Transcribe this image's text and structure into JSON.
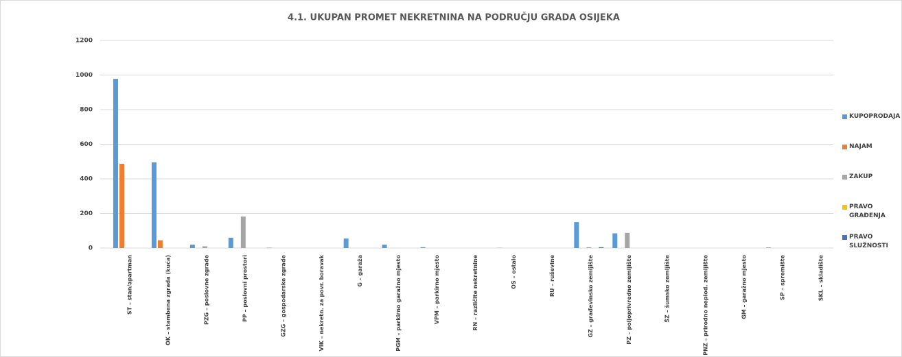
{
  "chart_data": {
    "type": "bar",
    "title": "4.1. UKUPAN PROMET NEKRETNINA NA PODRUČJU GRADA OSIJEKA",
    "categories": [
      "ST – stan/apartman",
      "OK – stambena zgrada (kuća)",
      "PZG – poslovne zgrade",
      "PP – poslovni prostori",
      "GZG – gospodarske zgrade",
      "VIK – nekretn. za povr. boravak",
      "G – garaža",
      "PGM – parkirno garažno mjesto",
      "VPM – parkirno mjesto",
      "RN – različite nekretnine",
      "OS – ostalo",
      "RU – ruševine",
      "GZ – građevinsko zemljište",
      "PZ – poljoprivredno zemljište",
      "ŠZ – šumsko zemljište",
      "PNZ – prirodno neplod. zemljište",
      "GM – garažno mjesto",
      "SP – spremište",
      "SKL – skladište"
    ],
    "series": [
      {
        "name": "KUPOPRODAJA",
        "color": "#5b9bd5",
        "values": [
          978,
          495,
          20,
          60,
          2,
          0,
          55,
          20,
          5,
          0,
          1,
          0,
          150,
          85,
          0,
          0,
          0,
          3,
          0
        ]
      },
      {
        "name": "NAJAM",
        "color": "#ed7d31",
        "values": [
          487,
          45,
          0,
          0,
          0,
          0,
          0,
          0,
          0,
          0,
          0,
          0,
          0,
          0,
          0,
          0,
          0,
          0,
          0
        ]
      },
      {
        "name": "ZAKUP",
        "color": "#a5a5a5",
        "values": [
          0,
          0,
          10,
          182,
          0,
          0,
          0,
          0,
          0,
          0,
          0,
          0,
          5,
          88,
          0,
          0,
          0,
          0,
          0
        ]
      },
      {
        "name": "PRAVO GRAĐENJA",
        "color": "#ffc000",
        "values": [
          0,
          0,
          0,
          0,
          0,
          0,
          0,
          0,
          0,
          0,
          0,
          0,
          0,
          0,
          0,
          0,
          0,
          0,
          0
        ]
      },
      {
        "name": "PRAVO SLUŽNOSTI",
        "color": "#4472c4",
        "values": [
          0,
          0,
          0,
          0,
          0,
          0,
          0,
          0,
          0,
          0,
          0,
          0,
          5,
          0,
          0,
          0,
          0,
          0,
          0
        ]
      }
    ],
    "ylim": [
      0,
      1200
    ],
    "yticks": [
      0,
      200,
      400,
      600,
      800,
      1000,
      1200
    ],
    "grid": true,
    "legend": "right"
  }
}
